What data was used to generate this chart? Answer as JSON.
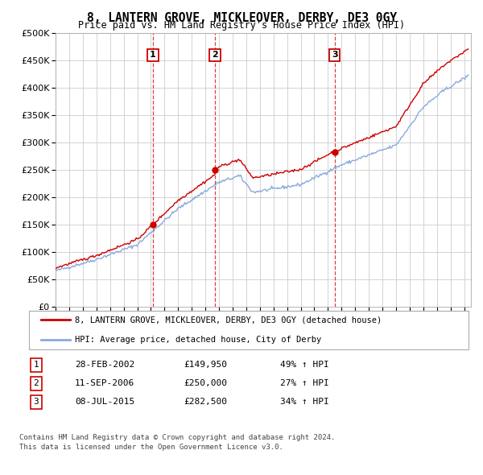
{
  "title": "8, LANTERN GROVE, MICKLEOVER, DERBY, DE3 0GY",
  "subtitle": "Price paid vs. HM Land Registry's House Price Index (HPI)",
  "ylim": [
    0,
    500000
  ],
  "yticks": [
    0,
    50000,
    100000,
    150000,
    200000,
    250000,
    300000,
    350000,
    400000,
    450000,
    500000
  ],
  "xlim_start": 1995.0,
  "xlim_end": 2025.5,
  "background_color": "#ffffff",
  "grid_color": "#cccccc",
  "hpi_color": "#88aadd",
  "price_color": "#cc0000",
  "sale_line_color": "#cc0000",
  "transaction_labels": [
    {
      "num": 1,
      "date": "28-FEB-2002",
      "price": "£149,950",
      "pct": "49% ↑ HPI",
      "year": 2002.15
    },
    {
      "num": 2,
      "date": "11-SEP-2006",
      "price": "£250,000",
      "pct": "27% ↑ HPI",
      "year": 2006.7
    },
    {
      "num": 3,
      "date": "08-JUL-2015",
      "price": "£282,500",
      "pct": "34% ↑ HPI",
      "year": 2015.5
    }
  ],
  "sale_prices": [
    149950,
    250000,
    282500
  ],
  "legend_label_price": "8, LANTERN GROVE, MICKLEOVER, DERBY, DE3 0GY (detached house)",
  "legend_label_hpi": "HPI: Average price, detached house, City of Derby",
  "footer_line1": "Contains HM Land Registry data © Crown copyright and database right 2024.",
  "footer_line2": "This data is licensed under the Open Government Licence v3.0."
}
